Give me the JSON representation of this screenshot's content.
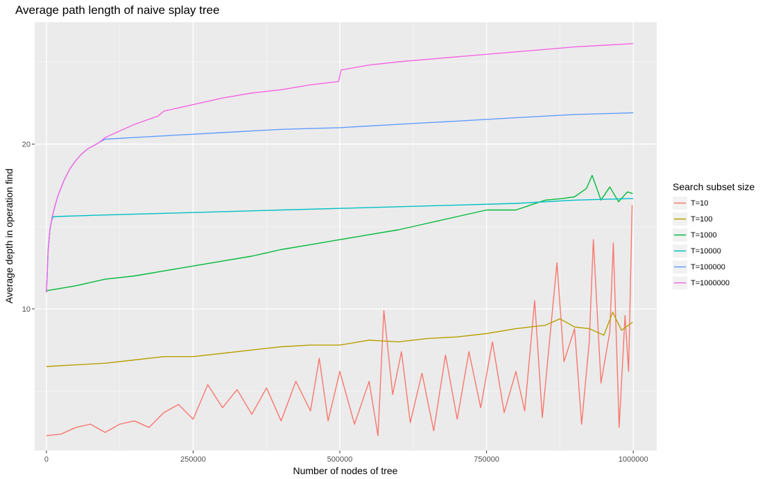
{
  "chart_data": {
    "type": "line",
    "title": "Average path length of naive splay tree",
    "xlabel": "Number of nodes of tree",
    "ylabel": "Average depth in operation find",
    "xlim": [
      -20000,
      1040000
    ],
    "ylim": [
      1.4,
      27.4
    ],
    "x_ticks": [
      0,
      250000,
      500000,
      750000,
      1000000
    ],
    "x_tick_labels": [
      "0",
      "250000",
      "500000",
      "750000",
      "1000000"
    ],
    "y_ticks": [
      10,
      20
    ],
    "y_tick_labels": [
      "10",
      "20"
    ],
    "grid": true,
    "legend": {
      "title": "Search subset size",
      "position": "right"
    },
    "series": [
      {
        "name": "T=10",
        "color": "#F8766D",
        "values": [
          [
            0,
            2.3
          ],
          [
            25000,
            2.4
          ],
          [
            50000,
            2.8
          ],
          [
            75000,
            3.0
          ],
          [
            100000,
            2.5
          ],
          [
            125000,
            3.0
          ],
          [
            150000,
            3.2
          ],
          [
            175000,
            2.8
          ],
          [
            200000,
            3.7
          ],
          [
            225000,
            4.2
          ],
          [
            250000,
            3.3
          ],
          [
            275000,
            5.4
          ],
          [
            300000,
            4.0
          ],
          [
            325000,
            5.1
          ],
          [
            350000,
            3.6
          ],
          [
            375000,
            5.2
          ],
          [
            400000,
            3.2
          ],
          [
            425000,
            5.6
          ],
          [
            450000,
            3.8
          ],
          [
            465000,
            7.0
          ],
          [
            480000,
            3.2
          ],
          [
            500000,
            6.2
          ],
          [
            525000,
            3.0
          ],
          [
            550000,
            5.6
          ],
          [
            565000,
            2.3
          ],
          [
            575000,
            9.9
          ],
          [
            590000,
            4.8
          ],
          [
            605000,
            7.4
          ],
          [
            620000,
            3.1
          ],
          [
            640000,
            6.1
          ],
          [
            660000,
            2.6
          ],
          [
            680000,
            7.2
          ],
          [
            700000,
            3.3
          ],
          [
            720000,
            7.4
          ],
          [
            740000,
            4.0
          ],
          [
            760000,
            8.0
          ],
          [
            780000,
            3.7
          ],
          [
            800000,
            6.2
          ],
          [
            815000,
            3.8
          ],
          [
            832000,
            10.5
          ],
          [
            845000,
            3.4
          ],
          [
            870000,
            12.8
          ],
          [
            882000,
            6.8
          ],
          [
            900000,
            8.8
          ],
          [
            912000,
            3.0
          ],
          [
            925000,
            8.0
          ],
          [
            932000,
            14.2
          ],
          [
            945000,
            5.5
          ],
          [
            960000,
            8.6
          ],
          [
            966000,
            14.0
          ],
          [
            976000,
            2.8
          ],
          [
            986000,
            9.6
          ],
          [
            992000,
            6.2
          ],
          [
            998000,
            16.3
          ]
        ]
      },
      {
        "name": "T=100",
        "color": "#B79F00",
        "values": [
          [
            0,
            6.5
          ],
          [
            50000,
            6.6
          ],
          [
            100000,
            6.7
          ],
          [
            150000,
            6.9
          ],
          [
            200000,
            7.1
          ],
          [
            250000,
            7.1
          ],
          [
            300000,
            7.3
          ],
          [
            350000,
            7.5
          ],
          [
            400000,
            7.7
          ],
          [
            450000,
            7.8
          ],
          [
            500000,
            7.8
          ],
          [
            550000,
            8.1
          ],
          [
            600000,
            8.0
          ],
          [
            650000,
            8.2
          ],
          [
            700000,
            8.3
          ],
          [
            750000,
            8.5
          ],
          [
            800000,
            8.8
          ],
          [
            850000,
            9.0
          ],
          [
            875000,
            9.4
          ],
          [
            900000,
            8.9
          ],
          [
            925000,
            8.8
          ],
          [
            950000,
            8.4
          ],
          [
            965000,
            9.8
          ],
          [
            980000,
            8.7
          ],
          [
            999000,
            9.2
          ]
        ]
      },
      {
        "name": "T=1000",
        "color": "#00BA38",
        "values": [
          [
            0,
            11.1
          ],
          [
            50000,
            11.4
          ],
          [
            100000,
            11.8
          ],
          [
            150000,
            12.0
          ],
          [
            200000,
            12.3
          ],
          [
            250000,
            12.6
          ],
          [
            300000,
            12.9
          ],
          [
            350000,
            13.2
          ],
          [
            400000,
            13.6
          ],
          [
            450000,
            13.9
          ],
          [
            500000,
            14.2
          ],
          [
            550000,
            14.5
          ],
          [
            600000,
            14.8
          ],
          [
            650000,
            15.2
          ],
          [
            700000,
            15.6
          ],
          [
            750000,
            16.0
          ],
          [
            800000,
            16.0
          ],
          [
            850000,
            16.6
          ],
          [
            880000,
            16.7
          ],
          [
            900000,
            16.8
          ],
          [
            920000,
            17.3
          ],
          [
            930000,
            18.1
          ],
          [
            945000,
            16.6
          ],
          [
            960000,
            17.4
          ],
          [
            975000,
            16.5
          ],
          [
            990000,
            17.1
          ],
          [
            999000,
            17.0
          ]
        ]
      },
      {
        "name": "T=10000",
        "color": "#00BFC4",
        "values": [
          [
            0,
            11.0
          ],
          [
            3000,
            13.6
          ],
          [
            6000,
            14.8
          ],
          [
            9000,
            15.4
          ],
          [
            12000,
            15.6
          ],
          [
            100000,
            15.7
          ],
          [
            200000,
            15.8
          ],
          [
            300000,
            15.9
          ],
          [
            400000,
            16.0
          ],
          [
            500000,
            16.1
          ],
          [
            600000,
            16.2
          ],
          [
            700000,
            16.3
          ],
          [
            800000,
            16.4
          ],
          [
            900000,
            16.6
          ],
          [
            1000000,
            16.7
          ]
        ]
      },
      {
        "name": "T=100000",
        "color": "#619CFF",
        "values": [
          [
            0,
            11.0
          ],
          [
            3000,
            13.6
          ],
          [
            6000,
            14.8
          ],
          [
            10000,
            15.6
          ],
          [
            15000,
            16.3
          ],
          [
            20000,
            16.9
          ],
          [
            30000,
            17.8
          ],
          [
            40000,
            18.5
          ],
          [
            50000,
            19.0
          ],
          [
            60000,
            19.4
          ],
          [
            70000,
            19.7
          ],
          [
            80000,
            19.9
          ],
          [
            90000,
            20.1
          ],
          [
            100000,
            20.3
          ],
          [
            150000,
            20.4
          ],
          [
            200000,
            20.5
          ],
          [
            300000,
            20.7
          ],
          [
            400000,
            20.9
          ],
          [
            500000,
            21.0
          ],
          [
            600000,
            21.2
          ],
          [
            700000,
            21.4
          ],
          [
            800000,
            21.6
          ],
          [
            900000,
            21.8
          ],
          [
            1000000,
            21.9
          ]
        ]
      },
      {
        "name": "T=1000000",
        "color": "#F564E3",
        "values": [
          [
            0,
            11.0
          ],
          [
            3000,
            13.6
          ],
          [
            6000,
            14.8
          ],
          [
            10000,
            15.6
          ],
          [
            15000,
            16.3
          ],
          [
            20000,
            16.9
          ],
          [
            30000,
            17.8
          ],
          [
            40000,
            18.5
          ],
          [
            50000,
            19.0
          ],
          [
            60000,
            19.4
          ],
          [
            70000,
            19.7
          ],
          [
            80000,
            19.9
          ],
          [
            90000,
            20.1
          ],
          [
            100000,
            20.4
          ],
          [
            125000,
            20.8
          ],
          [
            150000,
            21.2
          ],
          [
            190000,
            21.7
          ],
          [
            200000,
            22.0
          ],
          [
            250000,
            22.4
          ],
          [
            300000,
            22.8
          ],
          [
            350000,
            23.1
          ],
          [
            400000,
            23.3
          ],
          [
            450000,
            23.6
          ],
          [
            498000,
            23.8
          ],
          [
            502000,
            24.5
          ],
          [
            550000,
            24.8
          ],
          [
            600000,
            25.0
          ],
          [
            700000,
            25.3
          ],
          [
            800000,
            25.6
          ],
          [
            900000,
            25.9
          ],
          [
            1000000,
            26.1
          ]
        ]
      }
    ]
  }
}
